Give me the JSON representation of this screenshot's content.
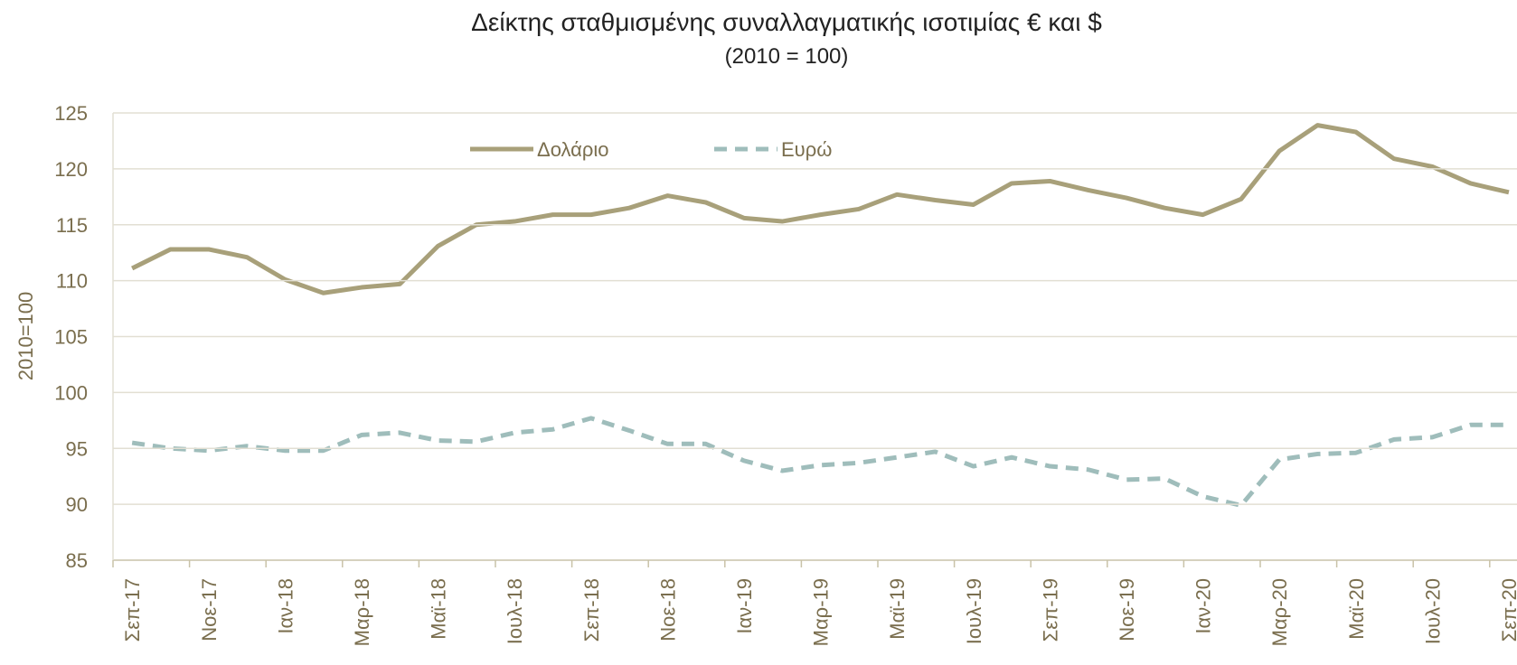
{
  "chart_data": {
    "type": "line",
    "title": "Δείκτης σταθμισμένης συναλλαγματικής ισοτιμίας € και $",
    "subtitle": "(2010 = 100)",
    "y_label": "2010=100",
    "categories": [
      "Σεπ-17",
      null,
      "Νοε-17",
      null,
      "Ιαν-18",
      null,
      "Μαρ-18",
      null,
      "Μαϊ-18",
      null,
      "Ιουλ-18",
      null,
      "Σεπ-18",
      null,
      "Νοε-18",
      null,
      "Ιαν-19",
      null,
      "Μαρ-19",
      null,
      "Μαϊ-19",
      null,
      "Ιουλ-19",
      null,
      "Σεπ-19",
      null,
      "Νοε-19",
      null,
      "Ιαν-20",
      null,
      "Μαρ-20",
      null,
      "Μαϊ-20",
      null,
      "Ιουλ-20",
      null,
      "Σεπ-20"
    ],
    "series": [
      {
        "name": "Δολάριο",
        "color": "#a8a07a",
        "dash": false,
        "values": [
          111.1,
          112.8,
          112.8,
          112.1,
          110.1,
          108.9,
          109.4,
          109.7,
          113.1,
          115.0,
          115.3,
          115.9,
          115.9,
          116.5,
          117.6,
          117.0,
          115.6,
          115.3,
          115.9,
          116.4,
          117.7,
          117.2,
          116.8,
          118.7,
          118.9,
          118.1,
          117.4,
          116.5,
          115.9,
          117.3,
          121.6,
          123.9,
          123.3,
          120.9,
          120.2,
          118.7,
          117.9
        ]
      },
      {
        "name": "Ευρώ",
        "color": "#9fbdbb",
        "dash": true,
        "values": [
          95.5,
          95.0,
          94.8,
          95.2,
          94.8,
          94.8,
          96.2,
          96.4,
          95.7,
          95.6,
          96.4,
          96.7,
          97.7,
          96.6,
          95.4,
          95.4,
          93.9,
          93.0,
          93.5,
          93.7,
          94.2,
          94.7,
          93.4,
          94.2,
          93.4,
          93.1,
          92.2,
          92.3,
          90.7,
          89.9,
          94.0,
          94.5,
          94.6,
          95.8,
          96.0,
          97.1,
          97.1
        ]
      }
    ],
    "ylim": [
      85,
      125
    ],
    "yticks": [
      85,
      90,
      95,
      100,
      105,
      110,
      115,
      120,
      125
    ],
    "grid": true,
    "legend": "top"
  }
}
